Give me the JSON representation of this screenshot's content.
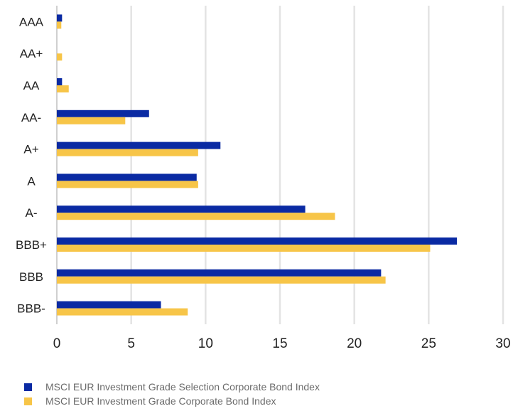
{
  "chart_data": {
    "type": "bar",
    "orientation": "horizontal",
    "title": "",
    "xlabel": "",
    "ylabel": "",
    "categories": [
      "AAA",
      "AA+",
      "AA",
      "AA-",
      "A+",
      "A",
      "A-",
      "BBB+",
      "BBB",
      "BBB-"
    ],
    "series": [
      {
        "name": "MSCI EUR Investment Grade Selection Corporate Bond Index",
        "color": "#0a2aa3",
        "values": [
          0.35,
          0,
          0.35,
          6.2,
          11.0,
          9.4,
          16.7,
          26.9,
          21.8,
          7.0
        ]
      },
      {
        "name": "MSCI EUR Investment Grade Corporate Bond Index",
        "color": "#f7c548",
        "values": [
          0.3,
          0.35,
          0.8,
          4.6,
          9.5,
          9.5,
          18.7,
          25.1,
          22.1,
          8.8
        ]
      }
    ],
    "xlim": [
      0,
      30
    ],
    "xticks": [
      "0",
      "5",
      "10",
      "15",
      "20",
      "25",
      "30"
    ],
    "grid": "vertical",
    "legend_position": "bottom-left"
  }
}
